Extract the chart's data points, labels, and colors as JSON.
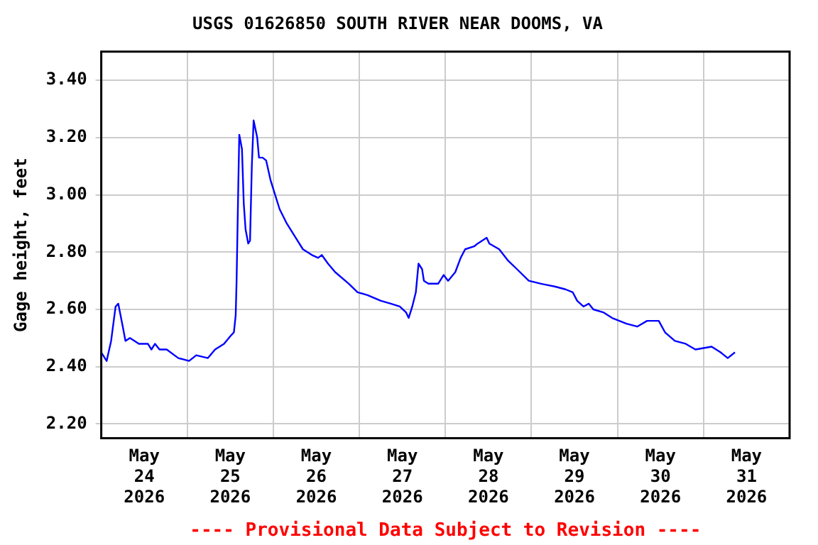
{
  "chart_data": {
    "type": "line",
    "title": "USGS 01626850 SOUTH RIVER NEAR DOOMS, VA",
    "ylabel": "Gage height, feet",
    "annotations": [
      "---- Provisional Data Subject to Revision ----"
    ],
    "series": [
      {
        "color": "#0000ff",
        "x": [
          "2026-05-24T00:00",
          "2026-05-24T01:30",
          "2026-05-24T02:45",
          "2026-05-24T04:00",
          "2026-05-24T04:45",
          "2026-05-24T06:00",
          "2026-05-24T06:45",
          "2026-05-24T08:00",
          "2026-05-24T10:30",
          "2026-05-24T13:00",
          "2026-05-24T14:00",
          "2026-05-24T15:00",
          "2026-05-24T16:15",
          "2026-05-24T18:15",
          "2026-05-24T21:30",
          "2026-05-25T00:30",
          "2026-05-25T02:30",
          "2026-05-25T05:45",
          "2026-05-25T07:45",
          "2026-05-25T10:15",
          "2026-05-25T12:15",
          "2026-05-25T13:00",
          "2026-05-25T13:30",
          "2026-05-25T13:45",
          "2026-05-25T14:15",
          "2026-05-25T14:30",
          "2026-05-25T15:15",
          "2026-05-25T15:45",
          "2026-05-25T16:15",
          "2026-05-25T17:00",
          "2026-05-25T17:30",
          "2026-05-25T18:00",
          "2026-05-25T18:30",
          "2026-05-25T19:30",
          "2026-05-25T20:00",
          "2026-05-25T21:00",
          "2026-05-25T22:00",
          "2026-05-25T23:15",
          "2026-05-26T00:30",
          "2026-05-26T01:45",
          "2026-05-26T03:45",
          "2026-05-26T06:15",
          "2026-05-26T08:15",
          "2026-05-26T10:45",
          "2026-05-26T12:30",
          "2026-05-26T13:30",
          "2026-05-26T15:15",
          "2026-05-26T17:15",
          "2026-05-26T21:00",
          "2026-05-26T23:30",
          "2026-05-27T02:15",
          "2026-05-27T06:00",
          "2026-05-27T08:45",
          "2026-05-27T11:15",
          "2026-05-27T13:00",
          "2026-05-27T13:45",
          "2026-05-27T14:45",
          "2026-05-27T15:45",
          "2026-05-27T16:30",
          "2026-05-27T17:30",
          "2026-05-27T18:00",
          "2026-05-27T19:15",
          "2026-05-27T22:00",
          "2026-05-27T23:30",
          "2026-05-28T00:45",
          "2026-05-28T02:45",
          "2026-05-28T04:15",
          "2026-05-28T05:30",
          "2026-05-28T08:00",
          "2026-05-28T09:00",
          "2026-05-28T11:30",
          "2026-05-28T12:15",
          "2026-05-28T15:00",
          "2026-05-28T17:30",
          "2026-05-28T20:00",
          "2026-05-28T23:15",
          "2026-05-29T02:30",
          "2026-05-29T06:30",
          "2026-05-29T09:30",
          "2026-05-29T11:30",
          "2026-05-29T12:45",
          "2026-05-29T14:30",
          "2026-05-29T16:00",
          "2026-05-29T17:15",
          "2026-05-29T20:00",
          "2026-05-29T22:30",
          "2026-05-30T02:30",
          "2026-05-30T05:30",
          "2026-05-30T08:15",
          "2026-05-30T11:30",
          "2026-05-30T13:15",
          "2026-05-30T16:00",
          "2026-05-30T19:00",
          "2026-05-30T21:45",
          "2026-05-31T02:15",
          "2026-05-31T04:45",
          "2026-05-31T06:45",
          "2026-05-31T08:45"
        ],
        "values": [
          2.45,
          2.42,
          2.49,
          2.61,
          2.62,
          2.54,
          2.49,
          2.5,
          2.48,
          2.48,
          2.46,
          2.48,
          2.46,
          2.46,
          2.43,
          2.42,
          2.44,
          2.43,
          2.46,
          2.48,
          2.51,
          2.52,
          2.58,
          2.7,
          3.05,
          3.21,
          3.16,
          2.97,
          2.88,
          2.83,
          2.84,
          3.1,
          3.26,
          3.2,
          3.13,
          3.13,
          3.12,
          3.05,
          3.0,
          2.95,
          2.9,
          2.85,
          2.81,
          2.79,
          2.78,
          2.79,
          2.76,
          2.73,
          2.69,
          2.66,
          2.65,
          2.63,
          2.62,
          2.61,
          2.59,
          2.57,
          2.61,
          2.66,
          2.76,
          2.74,
          2.7,
          2.69,
          2.69,
          2.72,
          2.7,
          2.73,
          2.78,
          2.81,
          2.82,
          2.83,
          2.85,
          2.83,
          2.81,
          2.77,
          2.74,
          2.7,
          2.69,
          2.68,
          2.67,
          2.66,
          2.63,
          2.61,
          2.62,
          2.6,
          2.59,
          2.57,
          2.55,
          2.54,
          2.56,
          2.56,
          2.52,
          2.49,
          2.48,
          2.46,
          2.47,
          2.45,
          2.43,
          2.45
        ]
      }
    ],
    "xlim": [
      "2026-05-24",
      "2026-06-01"
    ],
    "xticks": [
      {
        "value": "2026-05-24T12:00",
        "label": "May 24 2026"
      },
      {
        "value": "2026-05-25T12:00",
        "label": "May 25 2026"
      },
      {
        "value": "2026-05-26T12:00",
        "label": "May 26 2026"
      },
      {
        "value": "2026-05-27T12:00",
        "label": "May 27 2026"
      },
      {
        "value": "2026-05-28T12:00",
        "label": "May 28 2026"
      },
      {
        "value": "2026-05-29T12:00",
        "label": "May 29 2026"
      },
      {
        "value": "2026-05-30T12:00",
        "label": "May 30 2026"
      },
      {
        "value": "2026-05-31T12:00",
        "label": "May 31 2026"
      },
      {
        "value": "2026-05-25",
        "label": null
      },
      {
        "value": "2026-05-26",
        "label": null
      },
      {
        "value": "2026-05-27",
        "label": null
      },
      {
        "value": "2026-05-28",
        "label": null
      },
      {
        "value": "2026-05-29",
        "label": null
      },
      {
        "value": "2026-05-30",
        "label": null
      },
      {
        "value": "2026-05-31",
        "label": null
      }
    ],
    "ylim": [
      2.15,
      3.5
    ],
    "yticks": [
      {
        "value": 2.2,
        "label": "2.20"
      },
      {
        "value": 2.4,
        "label": "2.40"
      },
      {
        "value": 2.6,
        "label": "2.60"
      },
      {
        "value": 2.8,
        "label": "2.80"
      },
      {
        "value": 3.0,
        "label": "3.00"
      },
      {
        "value": 3.2,
        "label": "3.20"
      },
      {
        "value": 3.4,
        "label": "3.40"
      }
    ],
    "grid": true,
    "legend": false,
    "marker": "none",
    "line_style": "solid"
  }
}
